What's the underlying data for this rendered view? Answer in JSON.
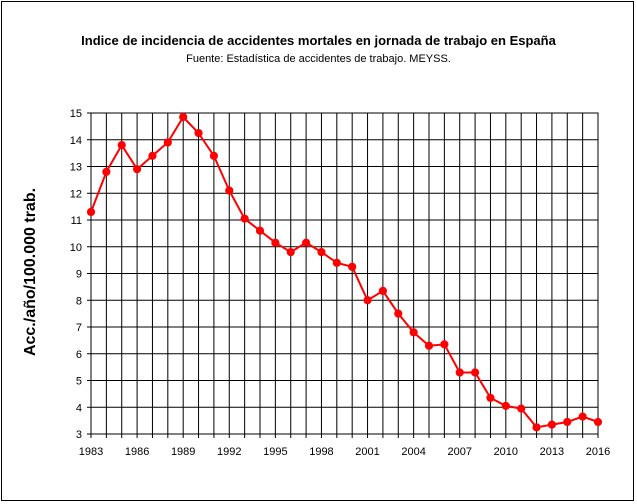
{
  "chart_data": {
    "type": "line",
    "title": "Indice de incidencia de accidentes mortales en jornada de trabajo en España",
    "subtitle": "Fuente: Estadística de accidentes de trabajo. MEYSS.",
    "xlabel": "",
    "ylabel": "Acc./año/100.000 trab.",
    "xlim": [
      1983,
      2016
    ],
    "ylim": [
      3,
      15
    ],
    "x_ticks": [
      1983,
      1986,
      1989,
      1992,
      1995,
      1998,
      2001,
      2004,
      2007,
      2010,
      2013,
      2016
    ],
    "y_ticks": [
      3,
      4,
      5,
      6,
      7,
      8,
      9,
      10,
      11,
      12,
      13,
      14,
      15
    ],
    "grid": true,
    "legend": "none",
    "color": "#ff0000",
    "series": [
      {
        "x": [
          1983,
          1984,
          1985,
          1986,
          1987,
          1988,
          1989,
          1990,
          1991,
          1992,
          1993,
          1994,
          1995,
          1996,
          1997,
          1998,
          1999,
          2000,
          2001,
          2002,
          2003,
          2004,
          2005,
          2006,
          2007,
          2008,
          2009,
          2010,
          2011,
          2012,
          2013,
          2014,
          2015,
          2016
        ],
        "values": [
          11.3,
          12.8,
          13.8,
          12.9,
          13.4,
          13.9,
          14.85,
          14.25,
          13.4,
          12.1,
          11.05,
          10.6,
          10.15,
          9.8,
          10.15,
          9.8,
          9.4,
          9.25,
          8.0,
          8.35,
          7.5,
          6.8,
          6.3,
          6.35,
          5.3,
          5.3,
          4.35,
          4.05,
          3.95,
          3.25,
          3.35,
          3.45,
          3.65,
          3.45
        ]
      }
    ]
  }
}
